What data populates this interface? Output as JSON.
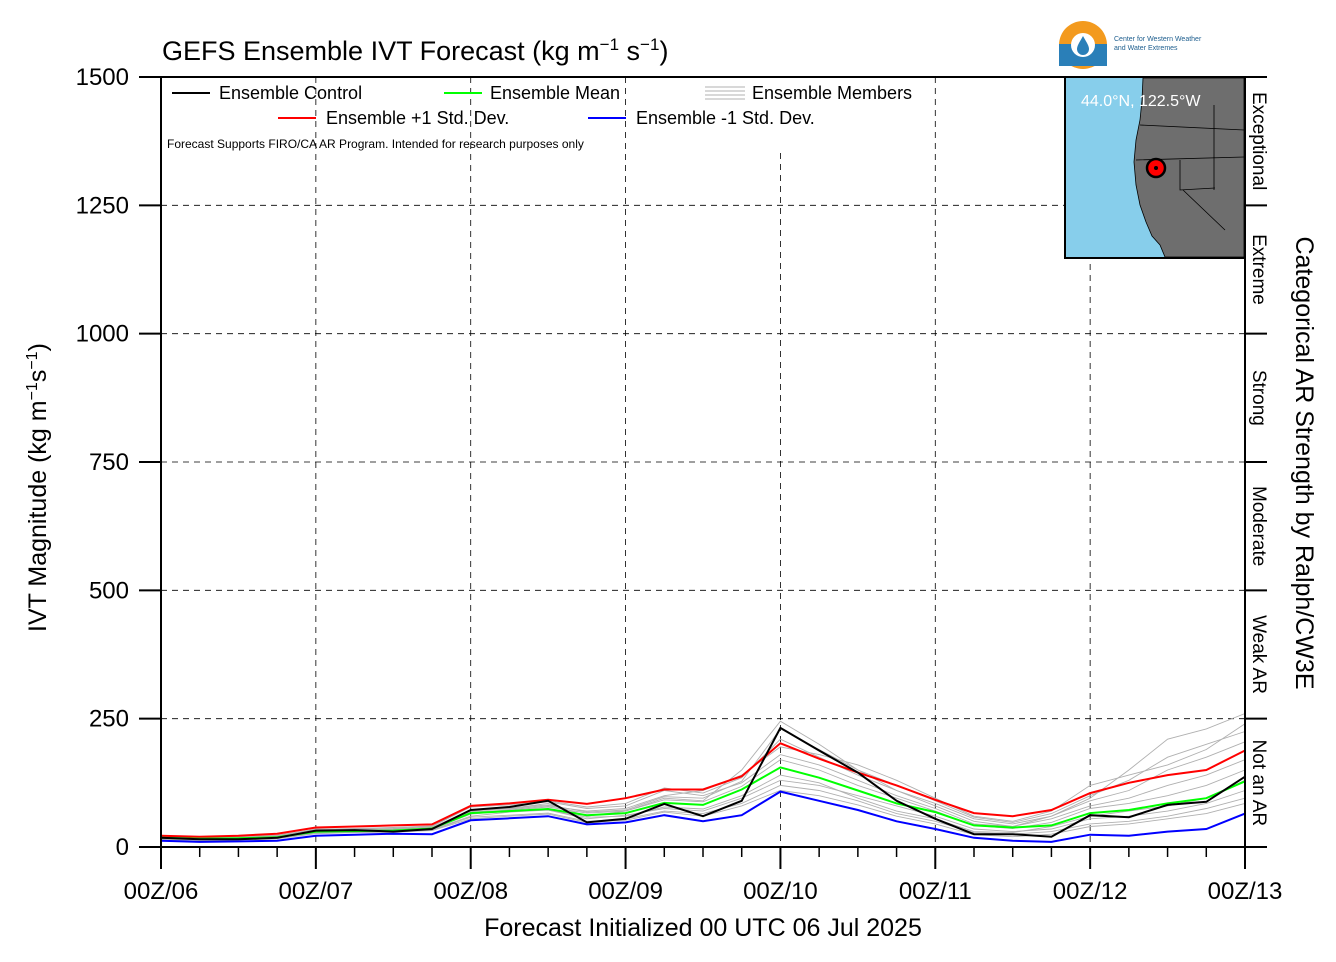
{
  "header": {
    "title_prefix": "GEFS Ensemble IVT Forecast (kg m",
    "title_exp1": "−1",
    "title_mid": " s",
    "title_exp2": "−1",
    "title_suffix": ")"
  },
  "logo": {
    "line1": "Center for Western Weather",
    "line2": "and Water Extremes"
  },
  "y_axis": {
    "label_prefix": "IVT Magnitude (kg m",
    "label_exp1": "−1",
    "label_mid": "s",
    "label_exp2": "−1",
    "label_suffix": ")",
    "ticks": [
      "0",
      "250",
      "500",
      "750",
      "1000",
      "1250",
      "1500"
    ]
  },
  "x_axis": {
    "label": "Forecast Initialized 00 UTC 06 Jul 2025",
    "ticks": [
      "00Z/06",
      "00Z/07",
      "00Z/08",
      "00Z/09",
      "00Z/10",
      "00Z/11",
      "00Z/12",
      "00Z/13"
    ]
  },
  "right_axis": {
    "label": "Categorical AR Strength by Ralph/CW3E",
    "categories": [
      "Not an AR",
      "Weak AR",
      "Moderate",
      "Strong",
      "Extreme",
      "Exceptional"
    ]
  },
  "legend": {
    "control": "Ensemble Control",
    "mean": "Ensemble Mean",
    "members": "Ensemble Members",
    "plus_std": "Ensemble +1 Std. Dev.",
    "minus_std": "Ensemble -1 Std. Dev.",
    "note": "Forecast Supports FIRO/CA AR Program. Intended for research purposes only"
  },
  "inset": {
    "location": "44.0°N, 122.5°W"
  },
  "colors": {
    "control": "#000000",
    "mean": "#00ff00",
    "plus_std": "#ff0000",
    "minus_std": "#0000ff",
    "members": "#b0b0b0",
    "ocean": "#87ceeb",
    "land": "#6e6e6e"
  },
  "chart_data": {
    "type": "line",
    "xlabel": "Forecast Initialized 00 UTC 06 Jul 2025",
    "ylabel": "IVT Magnitude (kg m−1s−1)",
    "ylim": [
      0,
      1500
    ],
    "x_unit": "forecast hour",
    "xlim": [
      0,
      168
    ],
    "grid": true,
    "legend_position": "top-left",
    "x": [
      0,
      6,
      12,
      18,
      24,
      30,
      36,
      42,
      48,
      54,
      60,
      66,
      72,
      78,
      84,
      90,
      96,
      102,
      108,
      114,
      120,
      126,
      132,
      138,
      144,
      150,
      156,
      162,
      168
    ],
    "series": [
      {
        "name": "Ensemble Control",
        "values": [
          18,
          15,
          15,
          18,
          32,
          33,
          30,
          35,
          72,
          78,
          90,
          48,
          55,
          84,
          60,
          90,
          232,
          188,
          145,
          90,
          55,
          25,
          25,
          20,
          62,
          58,
          82,
          88,
          137
        ]
      },
      {
        "name": "Ensemble Mean",
        "values": [
          18,
          16,
          17,
          19,
          30,
          31,
          32,
          36,
          66,
          70,
          74,
          62,
          66,
          86,
          82,
          112,
          155,
          135,
          110,
          85,
          68,
          42,
          38,
          42,
          66,
          72,
          85,
          95,
          128
        ]
      },
      {
        "name": "Ensemble +1 Std. Dev.",
        "values": [
          22,
          20,
          22,
          26,
          38,
          40,
          42,
          44,
          80,
          85,
          92,
          84,
          95,
          112,
          112,
          138,
          202,
          172,
          145,
          120,
          92,
          66,
          60,
          72,
          105,
          125,
          140,
          150,
          188
        ]
      },
      {
        "name": "Ensemble -1 Std. Dev.",
        "values": [
          12,
          10,
          11,
          12,
          22,
          24,
          26,
          25,
          52,
          56,
          60,
          44,
          48,
          62,
          50,
          62,
          108,
          90,
          72,
          50,
          35,
          18,
          12,
          10,
          24,
          22,
          30,
          35,
          65
        ]
      }
    ],
    "members": [
      [
        20,
        18,
        17,
        20,
        35,
        34,
        30,
        38,
        70,
        75,
        85,
        60,
        70,
        95,
        90,
        150,
        245,
        200,
        150,
        110,
        80,
        50,
        40,
        60,
        95,
        150,
        210,
        230,
        260
      ],
      [
        15,
        14,
        15,
        17,
        28,
        30,
        31,
        34,
        60,
        68,
        72,
        55,
        62,
        75,
        70,
        95,
        130,
        120,
        100,
        80,
        60,
        35,
        30,
        35,
        55,
        60,
        70,
        85,
        110
      ],
      [
        19,
        17,
        18,
        21,
        31,
        33,
        34,
        38,
        72,
        74,
        80,
        70,
        75,
        100,
        110,
        140,
        195,
        180,
        160,
        130,
        95,
        60,
        50,
        70,
        120,
        140,
        160,
        190,
        240
      ],
      [
        17,
        15,
        16,
        18,
        29,
        30,
        32,
        35,
        64,
        70,
        72,
        58,
        60,
        78,
        74,
        100,
        140,
        125,
        95,
        70,
        55,
        30,
        28,
        40,
        60,
        70,
        80,
        95,
        130
      ],
      [
        21,
        19,
        20,
        22,
        33,
        35,
        36,
        40,
        78,
        82,
        88,
        75,
        80,
        110,
        100,
        125,
        180,
        160,
        130,
        100,
        75,
        45,
        40,
        55,
        80,
        95,
        120,
        140,
        170
      ],
      [
        16,
        15,
        15,
        18,
        27,
        29,
        30,
        33,
        58,
        62,
        66,
        50,
        55,
        70,
        65,
        85,
        120,
        110,
        90,
        65,
        50,
        28,
        25,
        30,
        45,
        50,
        60,
        75,
        95
      ],
      [
        18,
        16,
        17,
        19,
        30,
        32,
        33,
        36,
        68,
        72,
        78,
        66,
        70,
        92,
        88,
        118,
        170,
        150,
        120,
        95,
        70,
        42,
        36,
        48,
        75,
        85,
        100,
        120,
        150
      ],
      [
        22,
        20,
        21,
        23,
        34,
        36,
        38,
        41,
        80,
        84,
        90,
        78,
        85,
        115,
        105,
        135,
        210,
        175,
        140,
        110,
        85,
        55,
        45,
        60,
        90,
        110,
        150,
        175,
        205
      ],
      [
        14,
        13,
        14,
        16,
        26,
        28,
        29,
        32,
        55,
        60,
        64,
        48,
        52,
        68,
        60,
        80,
        110,
        100,
        82,
        60,
        45,
        24,
        20,
        25,
        40,
        45,
        55,
        65,
        85
      ],
      [
        19,
        18,
        18,
        20,
        32,
        34,
        35,
        37,
        70,
        76,
        82,
        68,
        72,
        98,
        95,
        128,
        230,
        190,
        150,
        120,
        90,
        58,
        48,
        65,
        100,
        130,
        175,
        200,
        225
      ]
    ]
  }
}
